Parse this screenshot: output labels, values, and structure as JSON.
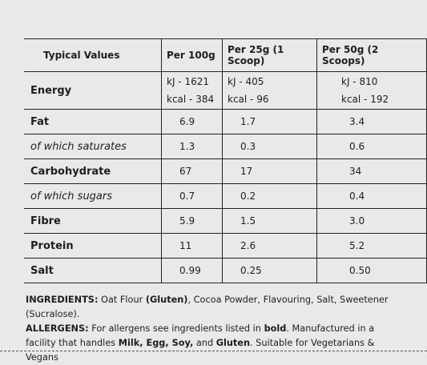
{
  "table": {
    "header": [
      "Typical Values",
      "Per 100g",
      "Per 25g (1 Scoop)",
      "Per 50g (2 Scoops)"
    ],
    "energy": {
      "label": "Energy",
      "kj": [
        "kJ - 1621",
        "kJ - 405",
        "kJ - 810"
      ],
      "kcal": [
        "kcal - 384",
        "kcal - 96",
        "kcal - 192"
      ]
    },
    "rows": [
      [
        "Fat",
        "6.9",
        "1.7",
        "3.4"
      ],
      [
        "of which saturates",
        "1.3",
        "0.3",
        "0.6"
      ],
      [
        "Carbohydrate",
        "67",
        "17",
        "34"
      ],
      [
        "of which sugars",
        "0.7",
        "0.2",
        "0.4"
      ],
      [
        "Fibre",
        "5.9",
        "1.5",
        "3.0"
      ],
      [
        "Protein",
        "11",
        "2.6",
        "5.2"
      ],
      [
        "Salt",
        "0.99",
        "0.25",
        "0.50"
      ]
    ]
  },
  "ingredients": [
    {
      "text": "INGREDIENTS:",
      "bold": true
    },
    {
      "text": " Oat Flour ",
      "bold": false
    },
    {
      "text": "(Gluten)",
      "bold": true
    },
    {
      "text": ", Cocoa Powder, Flavouring, Salt, Sweetener (Sucralose).",
      "bold": false
    }
  ],
  "allergens": [
    {
      "text": "ALLERGENS:",
      "bold": true
    },
    {
      "text": " For allergens see ingredients listed in ",
      "bold": false
    },
    {
      "text": "bold",
      "bold": true
    },
    {
      "text": ". Manufactured in a facility that handles ",
      "bold": false
    },
    {
      "text": "Milk, Egg, Soy,",
      "bold": true
    },
    {
      "text": " and ",
      "bold": false
    },
    {
      "text": "Gluten",
      "bold": true
    },
    {
      "text": ". Suitable for Vegetarians & Vegans",
      "bold": false
    }
  ]
}
